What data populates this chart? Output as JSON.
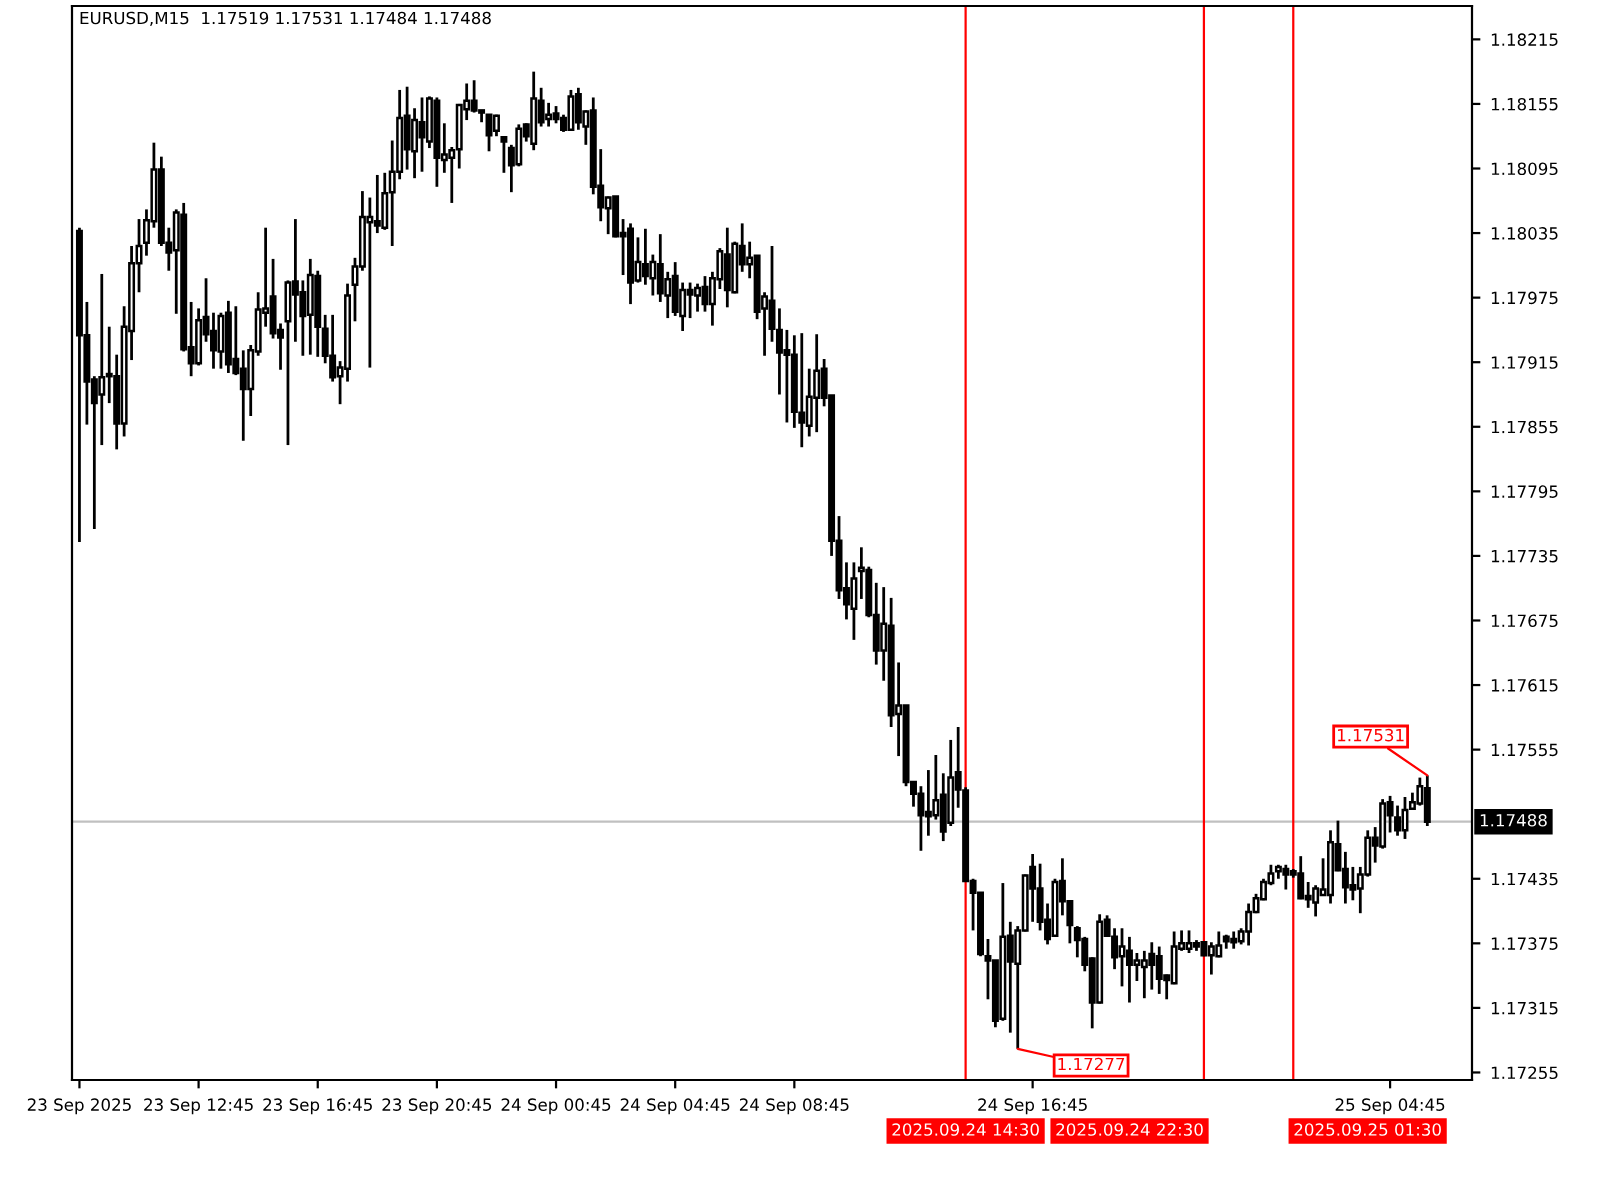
{
  "chart_data": {
    "type": "candlestick",
    "title": "EURUSD,M15  1.17519 1.17531 1.17484 1.17488",
    "x": [
      "2025-09-23T08:45",
      "2025-09-23T09:00",
      "2025-09-23T09:15",
      "2025-09-23T09:30",
      "2025-09-23T09:45",
      "2025-09-23T10:00",
      "2025-09-23T10:15",
      "2025-09-23T10:30",
      "2025-09-23T10:45",
      "2025-09-23T11:00",
      "2025-09-23T11:15",
      "2025-09-23T11:30",
      "2025-09-23T11:45",
      "2025-09-23T12:00",
      "2025-09-23T12:15",
      "2025-09-23T12:30",
      "2025-09-23T12:45",
      "2025-09-23T13:00",
      "2025-09-23T13:15",
      "2025-09-23T13:30",
      "2025-09-23T13:45",
      "2025-09-23T14:00",
      "2025-09-23T14:15",
      "2025-09-23T14:30",
      "2025-09-23T14:45",
      "2025-09-23T15:00",
      "2025-09-23T15:15",
      "2025-09-23T15:30",
      "2025-09-23T15:45",
      "2025-09-23T16:00",
      "2025-09-23T16:15",
      "2025-09-23T16:30",
      "2025-09-23T16:45",
      "2025-09-23T17:00",
      "2025-09-23T17:15",
      "2025-09-23T17:30",
      "2025-09-23T17:45",
      "2025-09-23T18:00",
      "2025-09-23T18:15",
      "2025-09-23T18:30",
      "2025-09-23T18:45",
      "2025-09-23T19:00",
      "2025-09-23T19:15",
      "2025-09-23T19:30",
      "2025-09-23T19:45",
      "2025-09-23T20:00",
      "2025-09-23T20:15",
      "2025-09-23T20:30",
      "2025-09-23T20:45",
      "2025-09-23T21:00",
      "2025-09-23T21:15",
      "2025-09-23T21:30",
      "2025-09-23T21:45",
      "2025-09-23T22:00",
      "2025-09-23T22:15",
      "2025-09-23T22:30",
      "2025-09-23T22:45",
      "2025-09-23T23:00",
      "2025-09-23T23:15",
      "2025-09-23T23:30",
      "2025-09-23T23:45",
      "2025-09-24T00:00",
      "2025-09-24T00:15",
      "2025-09-24T00:30",
      "2025-09-24T00:45",
      "2025-09-24T01:00",
      "2025-09-24T01:15",
      "2025-09-24T01:30",
      "2025-09-24T01:45",
      "2025-09-24T02:00",
      "2025-09-24T02:15",
      "2025-09-24T02:30",
      "2025-09-24T02:45",
      "2025-09-24T03:00",
      "2025-09-24T03:15",
      "2025-09-24T03:30",
      "2025-09-24T03:45",
      "2025-09-24T04:00",
      "2025-09-24T04:15",
      "2025-09-24T04:30",
      "2025-09-24T04:45",
      "2025-09-24T05:00",
      "2025-09-24T05:15",
      "2025-09-24T05:30",
      "2025-09-24T05:45",
      "2025-09-24T06:00",
      "2025-09-24T06:15",
      "2025-09-24T06:30",
      "2025-09-24T06:45",
      "2025-09-24T07:00",
      "2025-09-24T07:15",
      "2025-09-24T07:30",
      "2025-09-24T07:45",
      "2025-09-24T08:00",
      "2025-09-24T08:15",
      "2025-09-24T08:30",
      "2025-09-24T08:45",
      "2025-09-24T09:00",
      "2025-09-24T09:15",
      "2025-09-24T09:30",
      "2025-09-24T09:45",
      "2025-09-24T10:00",
      "2025-09-24T10:15",
      "2025-09-24T10:30",
      "2025-09-24T10:45",
      "2025-09-24T11:00",
      "2025-09-24T11:15",
      "2025-09-24T11:30",
      "2025-09-24T11:45",
      "2025-09-24T12:00",
      "2025-09-24T12:15",
      "2025-09-24T12:30",
      "2025-09-24T12:45",
      "2025-09-24T13:00",
      "2025-09-24T13:15",
      "2025-09-24T13:30",
      "2025-09-24T13:45",
      "2025-09-24T14:00",
      "2025-09-24T14:15",
      "2025-09-24T14:30",
      "2025-09-24T14:45",
      "2025-09-24T15:00",
      "2025-09-24T15:15",
      "2025-09-24T15:30",
      "2025-09-24T15:45",
      "2025-09-24T16:00",
      "2025-09-24T16:15",
      "2025-09-24T16:30",
      "2025-09-24T16:45",
      "2025-09-24T17:00",
      "2025-09-24T17:15",
      "2025-09-24T17:30",
      "2025-09-24T17:45",
      "2025-09-24T18:00",
      "2025-09-24T18:15",
      "2025-09-24T18:30",
      "2025-09-24T18:45",
      "2025-09-24T19:00",
      "2025-09-24T19:15",
      "2025-09-24T19:30",
      "2025-09-24T19:45",
      "2025-09-24T20:00",
      "2025-09-24T20:15",
      "2025-09-24T20:30",
      "2025-09-24T20:45",
      "2025-09-24T21:00",
      "2025-09-24T21:15",
      "2025-09-24T21:30",
      "2025-09-24T21:45",
      "2025-09-24T22:00",
      "2025-09-24T22:15",
      "2025-09-24T22:30",
      "2025-09-24T22:45",
      "2025-09-24T23:00",
      "2025-09-24T23:15",
      "2025-09-24T23:30",
      "2025-09-24T23:45",
      "2025-09-25T00:00",
      "2025-09-25T00:15",
      "2025-09-25T00:30",
      "2025-09-25T00:45",
      "2025-09-25T01:00",
      "2025-09-25T01:15",
      "2025-09-25T01:30",
      "2025-09-25T01:45",
      "2025-09-25T02:00",
      "2025-09-25T02:15",
      "2025-09-25T02:30",
      "2025-09-25T02:45",
      "2025-09-25T03:00",
      "2025-09-25T03:15",
      "2025-09-25T03:30",
      "2025-09-25T03:45",
      "2025-09-25T04:00",
      "2025-09-25T04:15",
      "2025-09-25T04:30",
      "2025-09-25T04:45",
      "2025-09-25T05:00",
      "2025-09-25T05:15",
      "2025-09-25T05:30",
      "2025-09-25T05:45",
      "2025-09-25T06:00"
    ],
    "ohlc": [
      [
        1.18037,
        1.1804,
        1.17748,
        1.1794
      ],
      [
        1.1794,
        1.17971,
        1.17857,
        1.17897
      ],
      [
        1.17899,
        1.17902,
        1.1776,
        1.17877
      ],
      [
        1.17885,
        1.17997,
        1.17838,
        1.17901
      ],
      [
        1.17904,
        1.17948,
        1.17877,
        1.17902
      ],
      [
        1.17902,
        1.17922,
        1.17834,
        1.17858
      ],
      [
        1.17858,
        1.17967,
        1.17846,
        1.17948
      ],
      [
        1.17944,
        1.18023,
        1.17917,
        1.18007
      ],
      [
        1.18007,
        1.18048,
        1.1798,
        1.18023
      ],
      [
        1.18026,
        1.18057,
        1.18014,
        1.18047
      ],
      [
        1.18046,
        1.18119,
        1.1804,
        1.18094
      ],
      [
        1.18094,
        1.18106,
        1.18023,
        1.18026
      ],
      [
        1.18026,
        1.1804,
        1.18,
        1.18017
      ],
      [
        1.18019,
        1.18057,
        1.1796,
        1.18054
      ],
      [
        1.18052,
        1.18063,
        1.17925,
        1.17927
      ],
      [
        1.17929,
        1.17971,
        1.17902,
        1.17914
      ],
      [
        1.17914,
        1.17965,
        1.17912,
        1.17954
      ],
      [
        1.17957,
        1.17993,
        1.17934,
        1.17941
      ],
      [
        1.17944,
        1.17961,
        1.17909,
        1.17926
      ],
      [
        1.17925,
        1.17961,
        1.17909,
        1.17958
      ],
      [
        1.17961,
        1.17972,
        1.17905,
        1.17913
      ],
      [
        1.17918,
        1.17967,
        1.17903,
        1.17905
      ],
      [
        1.17909,
        1.17926,
        1.17842,
        1.1789
      ],
      [
        1.1789,
        1.17931,
        1.17865,
        1.17926
      ],
      [
        1.17925,
        1.1798,
        1.17921,
        1.17964
      ],
      [
        1.17961,
        1.1804,
        1.17948,
        1.17965
      ],
      [
        1.17976,
        1.18011,
        1.17937,
        1.17942
      ],
      [
        1.17945,
        1.17951,
        1.17908,
        1.17938
      ],
      [
        1.17953,
        1.17991,
        1.17838,
        1.17989
      ],
      [
        1.1799,
        1.18048,
        1.17934,
        1.17978
      ],
      [
        1.1798,
        1.17991,
        1.17921,
        1.17958
      ],
      [
        1.17959,
        1.18011,
        1.17922,
        1.17996
      ],
      [
        1.17995,
        1.18,
        1.1792,
        1.17948
      ],
      [
        1.17946,
        1.17959,
        1.17914,
        1.17921
      ],
      [
        1.17921,
        1.17959,
        1.17897,
        1.17901
      ],
      [
        1.17902,
        1.17916,
        1.17876,
        1.1791
      ],
      [
        1.17909,
        1.17988,
        1.17897,
        1.17977
      ],
      [
        1.17987,
        1.18012,
        1.17953,
        1.18004
      ],
      [
        1.18004,
        1.18074,
        1.18,
        1.1805
      ],
      [
        1.18045,
        1.18068,
        1.1791,
        1.1805
      ],
      [
        1.18046,
        1.18089,
        1.18035,
        1.18042
      ],
      [
        1.1804,
        1.18091,
        1.18038,
        1.18072
      ],
      [
        1.18073,
        1.18121,
        1.18023,
        1.18092
      ],
      [
        1.18092,
        1.18168,
        1.18085,
        1.18142
      ],
      [
        1.18144,
        1.18171,
        1.18094,
        1.18113
      ],
      [
        1.18111,
        1.18151,
        1.18086,
        1.1814
      ],
      [
        1.18138,
        1.18161,
        1.18092,
        1.18124
      ],
      [
        1.1812,
        1.18162,
        1.18114,
        1.1816
      ],
      [
        1.18158,
        1.18161,
        1.18078,
        1.18105
      ],
      [
        1.18103,
        1.18137,
        1.18091,
        1.18108
      ],
      [
        1.18105,
        1.18115,
        1.18063,
        1.18112
      ],
      [
        1.18113,
        1.18155,
        1.18095,
        1.18154
      ],
      [
        1.1815,
        1.18174,
        1.1814,
        1.18158
      ],
      [
        1.18158,
        1.18177,
        1.18147,
        1.18149
      ],
      [
        1.18149,
        1.18149,
        1.18138,
        1.18147
      ],
      [
        1.18145,
        1.18145,
        1.18111,
        1.18126
      ],
      [
        1.1813,
        1.18145,
        1.18125,
        1.18144
      ],
      [
        1.18124,
        1.18124,
        1.18091,
        1.1812
      ],
      [
        1.18114,
        1.18117,
        1.18073,
        1.18098
      ],
      [
        1.18099,
        1.18136,
        1.18097,
        1.18132
      ],
      [
        1.18136,
        1.18137,
        1.1812,
        1.18125
      ],
      [
        1.18118,
        1.18185,
        1.18112,
        1.1816
      ],
      [
        1.18158,
        1.1817,
        1.18134,
        1.18138
      ],
      [
        1.18141,
        1.18156,
        1.18134,
        1.18145
      ],
      [
        1.18146,
        1.18153,
        1.18137,
        1.18141
      ],
      [
        1.18142,
        1.18145,
        1.18129,
        1.18131
      ],
      [
        1.18131,
        1.18168,
        1.1813,
        1.18162
      ],
      [
        1.18164,
        1.1817,
        1.18131,
        1.18138
      ],
      [
        1.18134,
        1.18149,
        1.18117,
        1.18148
      ],
      [
        1.18149,
        1.18161,
        1.18071,
        1.18078
      ],
      [
        1.18079,
        1.18113,
        1.18046,
        1.18059
      ],
      [
        1.18058,
        1.18069,
        1.18034,
        1.18068
      ],
      [
        1.18069,
        1.18069,
        1.18031,
        1.18032
      ],
      [
        1.18035,
        1.18048,
        1.17996,
        1.18032
      ],
      [
        1.18039,
        1.18044,
        1.17969,
        1.17989
      ],
      [
        1.17991,
        1.18031,
        1.17989,
        1.18008
      ],
      [
        1.18006,
        1.18039,
        1.17987,
        1.17995
      ],
      [
        1.17993,
        1.18015,
        1.17977,
        1.18008
      ],
      [
        1.18006,
        1.18034,
        1.17971,
        1.17979
      ],
      [
        1.17977,
        1.17999,
        1.17956,
        1.17992
      ],
      [
        1.17995,
        1.18008,
        1.17958,
        1.17962
      ],
      [
        1.17958,
        1.17989,
        1.17944,
        1.17982
      ],
      [
        1.17982,
        1.17989,
        1.17956,
        1.17978
      ],
      [
        1.17977,
        1.17988,
        1.17962,
        1.17984
      ],
      [
        1.17985,
        1.17995,
        1.17962,
        1.17969
      ],
      [
        1.17969,
        1.17999,
        1.17949,
        1.17993
      ],
      [
        1.17992,
        1.18021,
        1.17983,
        1.18018
      ],
      [
        1.18015,
        1.1804,
        1.17966,
        1.17982
      ],
      [
        1.1798,
        1.18027,
        1.17979,
        1.18025
      ],
      [
        1.18023,
        1.18044,
        1.17999,
        1.18006
      ],
      [
        1.18006,
        1.18027,
        1.17993,
        1.18012
      ],
      [
        1.18014,
        1.18014,
        1.17955,
        1.17962
      ],
      [
        1.17965,
        1.1798,
        1.17921,
        1.17976
      ],
      [
        1.17972,
        1.18023,
        1.17934,
        1.17946
      ],
      [
        1.17945,
        1.17965,
        1.17885,
        1.17924
      ],
      [
        1.17926,
        1.17945,
        1.17859,
        1.17922
      ],
      [
        1.17922,
        1.1794,
        1.17854,
        1.17869
      ],
      [
        1.17868,
        1.17942,
        1.17836,
        1.17859
      ],
      [
        1.17856,
        1.17909,
        1.17846,
        1.17883
      ],
      [
        1.17882,
        1.17941,
        1.1785,
        1.17907
      ],
      [
        1.17909,
        1.17918,
        1.17874,
        1.17882
      ],
      [
        1.17884,
        1.17884,
        1.17735,
        1.17749
      ],
      [
        1.17749,
        1.17772,
        1.17695,
        1.17703
      ],
      [
        1.17705,
        1.17729,
        1.17676,
        1.1769
      ],
      [
        1.17686,
        1.17729,
        1.17657,
        1.17714
      ],
      [
        1.17721,
        1.17743,
        1.17695,
        1.17724
      ],
      [
        1.17722,
        1.17725,
        1.17678,
        1.1768
      ],
      [
        1.1768,
        1.1771,
        1.17634,
        1.17647
      ],
      [
        1.17647,
        1.17706,
        1.17619,
        1.17672
      ],
      [
        1.1767,
        1.17696,
        1.17576,
        1.17587
      ],
      [
        1.17588,
        1.17636,
        1.17549,
        1.17596
      ],
      [
        1.17596,
        1.17596,
        1.17521,
        1.17525
      ],
      [
        1.17525,
        1.17525,
        1.17502,
        1.17514
      ],
      [
        1.17514,
        1.17521,
        1.17461,
        1.17494
      ],
      [
        1.17497,
        1.17536,
        1.17475,
        1.17493
      ],
      [
        1.17494,
        1.1755,
        1.1749,
        1.17508
      ],
      [
        1.17513,
        1.17533,
        1.1747,
        1.17479
      ],
      [
        1.17487,
        1.17564,
        1.17484,
        1.17529
      ],
      [
        1.17534,
        1.17576,
        1.17501,
        1.17518
      ],
      [
        1.17517,
        1.1752,
        1.17433,
        1.17433
      ],
      [
        1.17433,
        1.17435,
        1.17387,
        1.17422
      ],
      [
        1.17422,
        1.17422,
        1.17363,
        1.17365
      ],
      [
        1.17363,
        1.17379,
        1.17323,
        1.17359
      ],
      [
        1.17359,
        1.17359,
        1.17297,
        1.17303
      ],
      [
        1.17305,
        1.17431,
        1.17303,
        1.17381
      ],
      [
        1.17382,
        1.17395,
        1.17292,
        1.17358
      ],
      [
        1.17356,
        1.17391,
        1.17277,
        1.17387
      ],
      [
        1.17387,
        1.17439,
        1.17386,
        1.17438
      ],
      [
        1.17446,
        1.17458,
        1.17395,
        1.17426
      ],
      [
        1.17426,
        1.17449,
        1.17387,
        1.17395
      ],
      [
        1.17397,
        1.17412,
        1.17374,
        1.17379
      ],
      [
        1.17382,
        1.17435,
        1.17381,
        1.17432
      ],
      [
        1.17433,
        1.17454,
        1.17401,
        1.17414
      ],
      [
        1.17414,
        1.17415,
        1.17375,
        1.17392
      ],
      [
        1.17389,
        1.17391,
        1.17362,
        1.17378
      ],
      [
        1.17379,
        1.17381,
        1.17349,
        1.17355
      ],
      [
        1.17361,
        1.17362,
        1.17296,
        1.1732
      ],
      [
        1.1732,
        1.17402,
        1.17319,
        1.17395
      ],
      [
        1.17397,
        1.17401,
        1.17381,
        1.17382
      ],
      [
        1.17381,
        1.17389,
        1.17351,
        1.17362
      ],
      [
        1.17363,
        1.17389,
        1.17335,
        1.17372
      ],
      [
        1.17368,
        1.17381,
        1.1732,
        1.17355
      ],
      [
        1.17355,
        1.17366,
        1.1734,
        1.17359
      ],
      [
        1.17353,
        1.17368,
        1.17324,
        1.17359
      ],
      [
        1.17365,
        1.17376,
        1.17332,
        1.17355
      ],
      [
        1.17363,
        1.17372,
        1.17328,
        1.17342
      ],
      [
        1.17345,
        1.17346,
        1.17323,
        1.17341
      ],
      [
        1.17338,
        1.17386,
        1.17337,
        1.17372
      ],
      [
        1.1737,
        1.17387,
        1.17368,
        1.17375
      ],
      [
        1.1737,
        1.17387,
        1.17366,
        1.17375
      ],
      [
        1.17375,
        1.17378,
        1.17368,
        1.17372
      ],
      [
        1.17376,
        1.17377,
        1.17363,
        1.17364
      ],
      [
        1.17364,
        1.17376,
        1.17346,
        1.17372
      ],
      [
        1.17363,
        1.17386,
        1.17362,
        1.17373
      ],
      [
        1.17381,
        1.17383,
        1.1737,
        1.17377
      ],
      [
        1.17379,
        1.17386,
        1.1737,
        1.17376
      ],
      [
        1.17377,
        1.17389,
        1.17374,
        1.17386
      ],
      [
        1.17386,
        1.17412,
        1.17373,
        1.17404
      ],
      [
        1.17404,
        1.17421,
        1.17403,
        1.17417
      ],
      [
        1.17416,
        1.17435,
        1.17415,
        1.17432
      ],
      [
        1.17431,
        1.17448,
        1.17429,
        1.1744
      ],
      [
        1.17442,
        1.17448,
        1.17435,
        1.17446
      ],
      [
        1.17444,
        1.17448,
        1.17425,
        1.17439
      ],
      [
        1.17442,
        1.17444,
        1.17436,
        1.17439
      ],
      [
        1.1744,
        1.17456,
        1.17416,
        1.17417
      ],
      [
        1.17419,
        1.17432,
        1.17408,
        1.17416
      ],
      [
        1.17413,
        1.17429,
        1.174,
        1.17426
      ],
      [
        1.1742,
        1.17454,
        1.17419,
        1.17425
      ],
      [
        1.1742,
        1.1748,
        1.17412,
        1.17469
      ],
      [
        1.17467,
        1.17489,
        1.17442,
        1.17443
      ],
      [
        1.17444,
        1.1746,
        1.17412,
        1.17427
      ],
      [
        1.17429,
        1.17446,
        1.17415,
        1.17425
      ],
      [
        1.17426,
        1.17446,
        1.17403,
        1.17439
      ],
      [
        1.17439,
        1.1748,
        1.17437,
        1.17473
      ],
      [
        1.17473,
        1.17483,
        1.1745,
        1.17466
      ],
      [
        1.17465,
        1.17509,
        1.17463,
        1.17505
      ],
      [
        1.17506,
        1.17512,
        1.17478,
        1.17494
      ],
      [
        1.17492,
        1.17503,
        1.17475,
        1.1748
      ],
      [
        1.1748,
        1.17511,
        1.17472,
        1.17499
      ],
      [
        1.175,
        1.17515,
        1.17499,
        1.17506
      ],
      [
        1.17505,
        1.17529,
        1.17503,
        1.17521
      ],
      [
        1.17519,
        1.17531,
        1.17484,
        1.17488
      ]
    ],
    "color": "#000000",
    "xlim": [
      "2025-09-23T08:30",
      "2025-09-25T07:30"
    ],
    "xticks": [
      {
        "value": "2025-09-23T08:45",
        "label": "23 Sep 2025"
      },
      {
        "value": "2025-09-23T12:45",
        "label": "23 Sep 12:45"
      },
      {
        "value": "2025-09-23T16:45",
        "label": "23 Sep 16:45"
      },
      {
        "value": "2025-09-23T20:45",
        "label": "23 Sep 20:45"
      },
      {
        "value": "2025-09-24T00:45",
        "label": "24 Sep 00:45"
      },
      {
        "value": "2025-09-24T04:45",
        "label": "24 Sep 04:45"
      },
      {
        "value": "2025-09-24T08:45",
        "label": "24 Sep 08:45"
      },
      {
        "value": "2025-09-24T16:45",
        "label": "24 Sep 16:45"
      },
      {
        "value": "2025-09-25T04:45",
        "label": "25 Sep 04:45"
      }
    ],
    "ylim": [
      1.17248,
      1.18246
    ],
    "yticks": [
      1.17255,
      1.17315,
      1.17375,
      1.17435,
      1.17555,
      1.17615,
      1.17675,
      1.17735,
      1.17795,
      1.17855,
      1.17915,
      1.17975,
      1.18035,
      1.18095,
      1.18155,
      1.18215
    ],
    "ref_lines": [
      {
        "axis": "y",
        "value": 1.17488,
        "label": "1.17488",
        "color": "#c0c0c0"
      },
      {
        "axis": "x",
        "value": "2025-09-24T14:30",
        "label": "2025.09.24 14:30",
        "color": "#ff0000"
      },
      {
        "axis": "x",
        "value": "2025-09-24T22:30",
        "label": "2025.09.24 22:30",
        "color": "#ff0000"
      },
      {
        "axis": "x",
        "value": "2025-09-25T01:30",
        "label": "2025.09.25 01:30",
        "color": "#ff0000"
      }
    ],
    "annotations": [
      {
        "text": "1.17277",
        "x": "2025-09-24T16:15",
        "y": 1.17277
      },
      {
        "text": "1.17531",
        "x": "2025-09-25T06:00",
        "y": 1.17531
      }
    ],
    "grid": false
  }
}
